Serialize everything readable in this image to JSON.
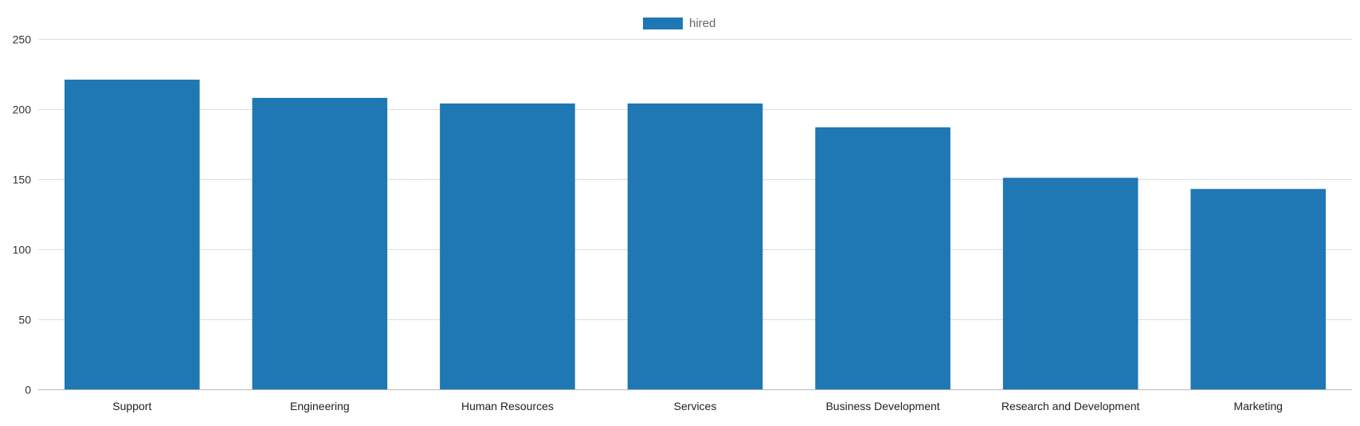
{
  "chart_data": {
    "type": "bar",
    "categories": [
      "Support",
      "Engineering",
      "Human Resources",
      "Services",
      "Business Development",
      "Research and Development",
      "Marketing"
    ],
    "series": [
      {
        "name": "hired",
        "values": [
          221,
          208,
          204,
          204,
          187,
          151,
          143
        ],
        "color": "#1f77b4"
      }
    ],
    "title": "",
    "xlabel": "",
    "ylabel": "",
    "ylim": [
      0,
      250
    ],
    "yticks": [
      0,
      50,
      100,
      150,
      200,
      250
    ],
    "grid": true,
    "legend": "top-center"
  }
}
